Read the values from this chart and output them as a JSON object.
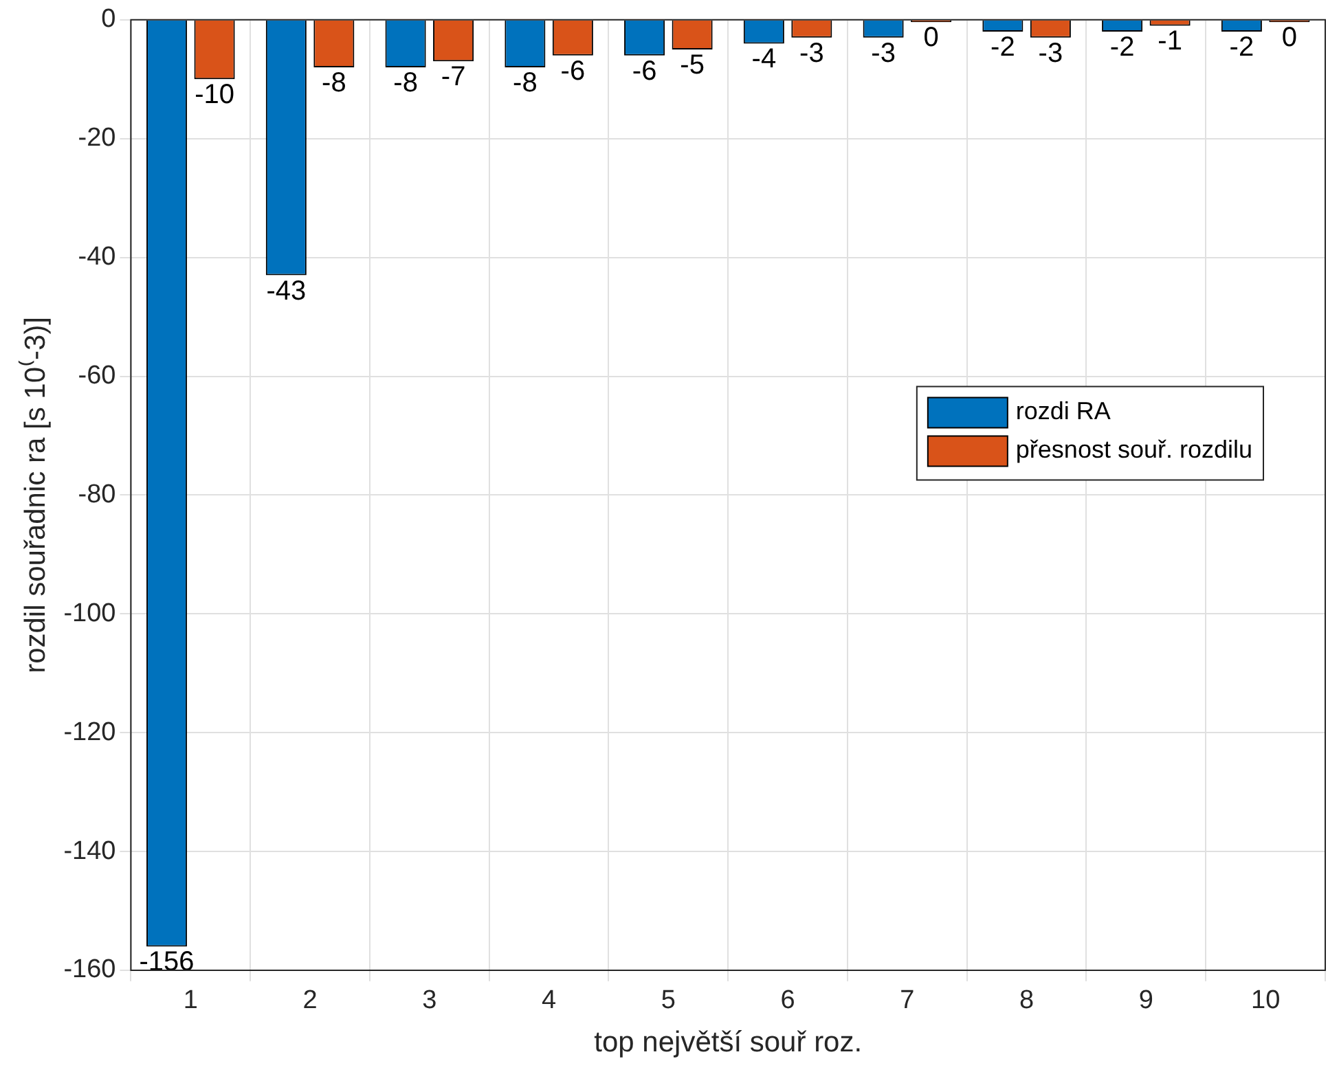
{
  "chart_data": {
    "type": "bar",
    "xlabel": "top největší souř roz.",
    "ylabel": "rozdil souřadnic ra [s 10⁽-3)]",
    "categories": [
      "1",
      "2",
      "3",
      "4",
      "5",
      "6",
      "7",
      "8",
      "9",
      "10"
    ],
    "series": [
      {
        "name": "rozdi RA",
        "color": "#0072bd",
        "values": [
          -156,
          -43,
          -8,
          -8,
          -6,
          -4,
          -3,
          -2,
          -2,
          -2
        ],
        "value_labels": [
          "-156",
          "-43",
          "-8",
          "-8",
          "-6",
          "-4",
          "-3",
          "-2",
          "-2",
          "-2"
        ]
      },
      {
        "name": "přesnost souř. rozdilu",
        "color": "#d95319",
        "values": [
          -10,
          -8,
          -7,
          -6,
          -5,
          -3,
          -0.4,
          -3,
          -1,
          -0.4
        ],
        "value_labels": [
          "-10",
          "-8",
          "-7",
          "-6",
          "-5",
          "-3",
          "0",
          "-3",
          "-1",
          "0"
        ]
      }
    ],
    "ylim": [
      -160,
      0
    ],
    "yticks": [
      -160,
      -140,
      -120,
      -100,
      -80,
      -60,
      -40,
      -20,
      0
    ],
    "grid": true,
    "legend": "right"
  }
}
